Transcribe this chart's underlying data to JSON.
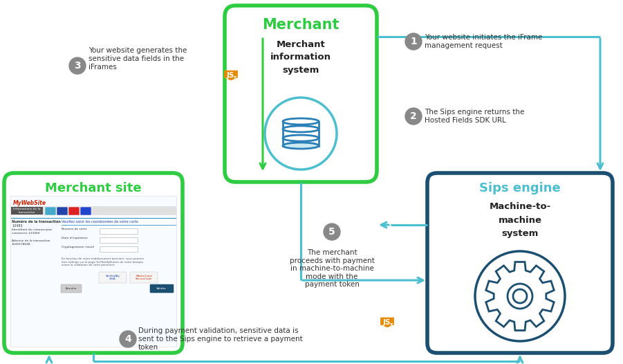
{
  "bg_color": "#ffffff",
  "green": "#2ecc40",
  "cyan": "#4bbfcf",
  "dark_blue": "#1b4f72",
  "gray": "#888888",
  "text_dark": "#333333",
  "step1_text": "Your website initiates the iFrame\nmanagement request",
  "step2_text": "The Sips engine returns the\nHosted Fields SDK URL",
  "step3_text": "Your website generates the\nsensitive data fields in the\niFrames",
  "step4_text": "During payment validation, sensitive data is\nsent to the Sips engine to retrieve a payment\ntoken",
  "step5_text": "The merchant\nproceeds with payment\nin machine-to-machine\nmode with the\npayment token",
  "merchant_title": "Merchant",
  "merchant_sub": "Merchant\ninformation\nsystem",
  "site_title": "Merchant site",
  "sips_title": "Sips engine",
  "sips_sub": "Machine-to-\nmachine\nsystem"
}
